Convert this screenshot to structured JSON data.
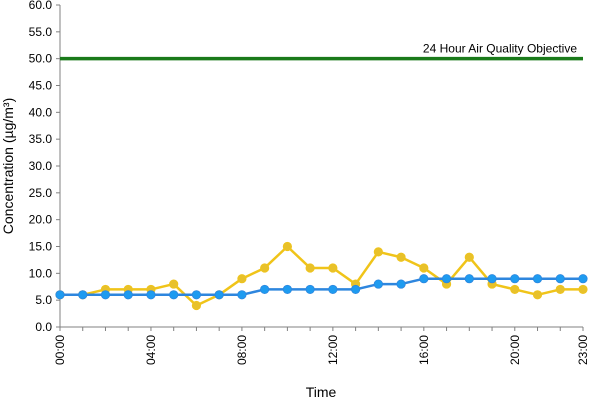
{
  "chart_data": {
    "type": "line",
    "xlabel": "Time",
    "ylabel": "Concentration (µg/m³)",
    "ylim": [
      0,
      60
    ],
    "y_ticks": [
      "0.0",
      "5.0",
      "10.0",
      "15.0",
      "20.0",
      "25.0",
      "30.0",
      "35.0",
      "40.0",
      "45.0",
      "50.0",
      "55.0",
      "60.0"
    ],
    "x_ticks": [
      {
        "hour": 0,
        "label": "00:00"
      },
      {
        "hour": 4,
        "label": "04:00"
      },
      {
        "hour": 8,
        "label": "08:00"
      },
      {
        "hour": 12,
        "label": "12:00"
      },
      {
        "hour": 16,
        "label": "16:00"
      },
      {
        "hour": 20,
        "label": "20:00"
      },
      {
        "hour": 23,
        "label": "23:00"
      }
    ],
    "x": [
      0,
      1,
      2,
      3,
      4,
      5,
      6,
      7,
      8,
      9,
      10,
      11,
      12,
      13,
      14,
      15,
      16,
      17,
      18,
      19,
      20,
      21,
      22,
      23
    ],
    "series": [
      {
        "color": "#f0c419",
        "marker_fill": "#e8c12a",
        "values": [
          6,
          6,
          7,
          7,
          7,
          8,
          4,
          6,
          9,
          11,
          15,
          11,
          11,
          8,
          14,
          13,
          11,
          8,
          13,
          8,
          7,
          6,
          7,
          7
        ]
      },
      {
        "color": "#2e86de",
        "marker_fill": "#1e9bf0",
        "values": [
          6,
          6,
          6,
          6,
          6,
          6,
          6,
          6,
          6,
          7,
          7,
          7,
          7,
          7,
          8,
          8,
          9,
          9,
          9,
          9,
          9,
          9,
          9,
          9
        ]
      }
    ],
    "reference_line": {
      "value": 50,
      "label": "24 Hour Air Quality Objective",
      "color": "#1a7a1a"
    },
    "grid": false,
    "legend": "none"
  }
}
